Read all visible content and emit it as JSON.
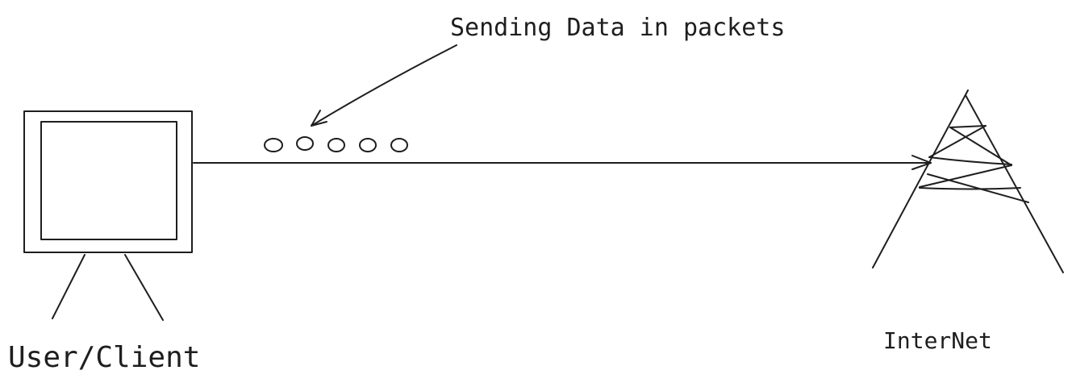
{
  "labels": {
    "annotation": "Sending Data in packets",
    "client": "User/Client",
    "internet": "InterNet"
  },
  "diagram": {
    "packet_count": 5,
    "stroke_color": "#1e1e1e",
    "background_color": "#ffffff"
  }
}
